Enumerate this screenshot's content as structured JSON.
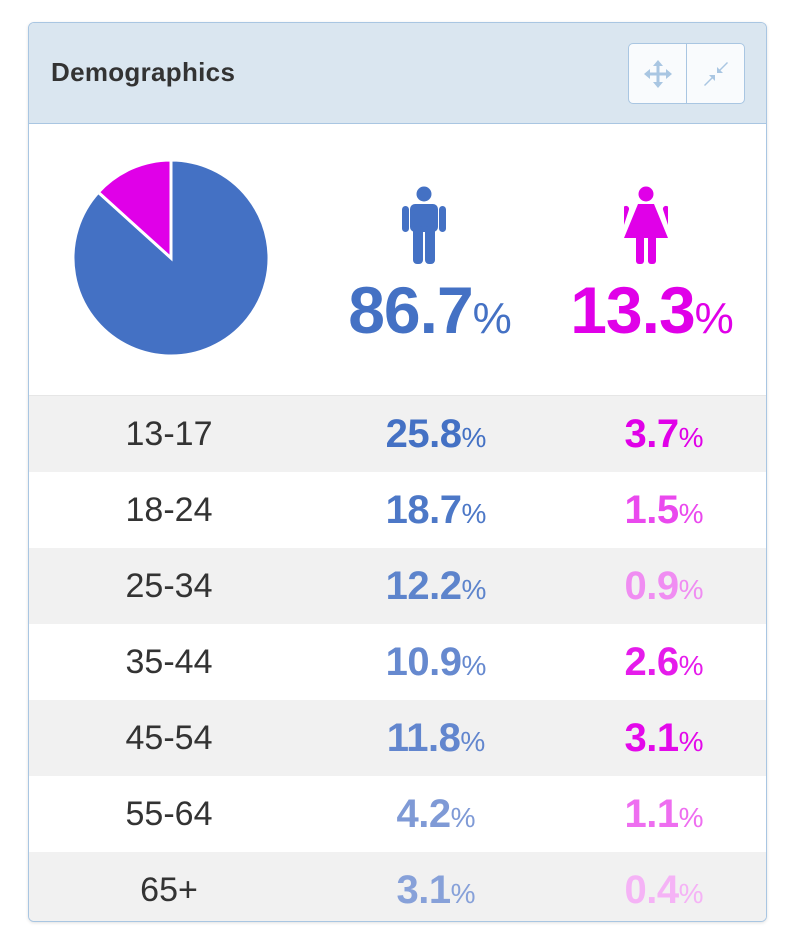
{
  "panel": {
    "title": "Demographics",
    "buttons": [
      {
        "icon": "move-icon"
      },
      {
        "icon": "collapse-icon"
      }
    ]
  },
  "colors": {
    "male": "#4471c4",
    "female": "#e000e8",
    "header_bg": "#dae6f0",
    "border": "#a9c6e2"
  },
  "summary": {
    "male_value": "86.7",
    "female_value": "13.3",
    "percent_symbol": "%"
  },
  "chart_data": {
    "type": "pie",
    "slices": [
      {
        "name": "Male",
        "value": 86.7,
        "color": "#4471c4"
      },
      {
        "name": "Female",
        "value": 13.3,
        "color": "#e000e8"
      }
    ]
  },
  "age_groups": [
    {
      "label": "13-17",
      "male": "25.8",
      "female": "3.7",
      "male_color": "#4471c4",
      "female_color": "#e000e8"
    },
    {
      "label": "18-24",
      "male": "18.7",
      "female": "1.5",
      "male_color": "#4d78c7",
      "female_color": "#ea49ee"
    },
    {
      "label": "25-34",
      "male": "12.2",
      "female": "0.9",
      "male_color": "#5d84cc",
      "female_color": "#f08df2"
    },
    {
      "label": "35-44",
      "male": "10.9",
      "female": "2.6",
      "male_color": "#6689cf",
      "female_color": "#e51ceb"
    },
    {
      "label": "45-54",
      "male": "11.8",
      "female": "3.1",
      "male_color": "#6286ce",
      "female_color": "#e309ea"
    },
    {
      "label": "55-64",
      "male": "4.2",
      "female": "1.1",
      "male_color": "#7f9ad6",
      "female_color": "#ee6ef0"
    },
    {
      "label": "65+",
      "male": "3.1",
      "female": "0.4",
      "male_color": "#87a1d9",
      "female_color": "#f5b3f6"
    }
  ]
}
